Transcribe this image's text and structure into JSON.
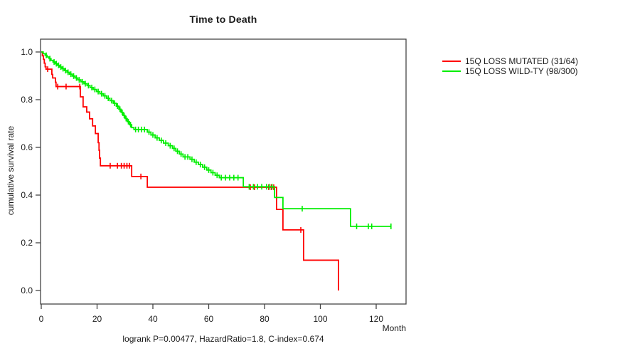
{
  "figure": {
    "title": "Time to Death",
    "ylabel": "cumulative survival rate",
    "xlabel": "Month",
    "footer": "logrank P=0.00477, HazardRatio=1.8, C-index=0.674"
  },
  "chart_data": {
    "type": "line",
    "subtype": "kaplan-meier-step",
    "title": "Time to Death",
    "xlabel": "Month",
    "ylabel": "cumulative survival rate",
    "xlim": [
      0,
      131
    ],
    "ylim": [
      0,
      1.0
    ],
    "x_ticks": [
      0,
      20,
      40,
      60,
      80,
      100,
      120
    ],
    "y_ticks": [
      0.0,
      0.2,
      0.4,
      0.6,
      0.8,
      1.0
    ],
    "grid": false,
    "legend_position": "right-outside",
    "annotation": "logrank P=0.00477, HazardRatio=1.8, C-index=0.674",
    "axis_color": "#444444",
    "series": [
      {
        "name": "15Q LOSS MUTATED (31/64)",
        "color": "#ff0000",
        "end_month": 106.5,
        "steps": [
          [
            0,
            1.0
          ],
          [
            0.4,
            0.984
          ],
          [
            0.8,
            0.969
          ],
          [
            1.1,
            0.953
          ],
          [
            1.4,
            0.938
          ],
          [
            1.7,
            0.928
          ],
          [
            3.8,
            0.906
          ],
          [
            4.1,
            0.891
          ],
          [
            5.1,
            0.873
          ],
          [
            5.3,
            0.855
          ],
          [
            14,
            0.812
          ],
          [
            15,
            0.77
          ],
          [
            16.3,
            0.748
          ],
          [
            17.3,
            0.72
          ],
          [
            18.4,
            0.69
          ],
          [
            19.4,
            0.658
          ],
          [
            20.4,
            0.62
          ],
          [
            20.7,
            0.588
          ],
          [
            20.9,
            0.555
          ],
          [
            21.2,
            0.523
          ],
          [
            32.4,
            0.478
          ],
          [
            38,
            0.433
          ],
          [
            84.3,
            0.34
          ],
          [
            86.6,
            0.254
          ],
          [
            94,
            0.127
          ],
          [
            106.5,
            0
          ]
        ],
        "censor_months": [
          2.3,
          5.9,
          8.9,
          13.8,
          24.7,
          27.3,
          28.7,
          29.7,
          30.7,
          31.6,
          35.7,
          74.9,
          76.4,
          81.5,
          82.4,
          83.3,
          93
        ]
      },
      {
        "name": "15Q LOSS WILD-TY (98/300)",
        "color": "#00ee00",
        "end_month": 125.3,
        "steps": [
          [
            0,
            1.0
          ],
          [
            0.7,
            0.993
          ],
          [
            1.4,
            0.986
          ],
          [
            2.1,
            0.979
          ],
          [
            2.8,
            0.972
          ],
          [
            3.5,
            0.965
          ],
          [
            4.2,
            0.958
          ],
          [
            5,
            0.951
          ],
          [
            5.8,
            0.944
          ],
          [
            6.6,
            0.937
          ],
          [
            7.4,
            0.93
          ],
          [
            8.3,
            0.922
          ],
          [
            9.2,
            0.915
          ],
          [
            10.1,
            0.907
          ],
          [
            11.1,
            0.899
          ],
          [
            12.1,
            0.891
          ],
          [
            13.1,
            0.883
          ],
          [
            14.2,
            0.875
          ],
          [
            15.3,
            0.867
          ],
          [
            16.4,
            0.859
          ],
          [
            17.5,
            0.851
          ],
          [
            18.6,
            0.843
          ],
          [
            19.8,
            0.834
          ],
          [
            21,
            0.825
          ],
          [
            22.2,
            0.816
          ],
          [
            23.4,
            0.806
          ],
          [
            24.6,
            0.796
          ],
          [
            25.8,
            0.785
          ],
          [
            26.9,
            0.773
          ],
          [
            27.8,
            0.76
          ],
          [
            28.6,
            0.747
          ],
          [
            29.3,
            0.734
          ],
          [
            30,
            0.721
          ],
          [
            30.8,
            0.708
          ],
          [
            31.6,
            0.695
          ],
          [
            32.4,
            0.683
          ],
          [
            33.2,
            0.675
          ],
          [
            38,
            0.664
          ],
          [
            39.3,
            0.652
          ],
          [
            40.8,
            0.64
          ],
          [
            42.3,
            0.629
          ],
          [
            43.8,
            0.618
          ],
          [
            45.5,
            0.607
          ],
          [
            47,
            0.596
          ],
          [
            48.2,
            0.584
          ],
          [
            49.5,
            0.572
          ],
          [
            50.8,
            0.56
          ],
          [
            53.3,
            0.55
          ],
          [
            54.8,
            0.538
          ],
          [
            56.3,
            0.528
          ],
          [
            57.8,
            0.517
          ],
          [
            59.3,
            0.505
          ],
          [
            60.8,
            0.494
          ],
          [
            62.3,
            0.483
          ],
          [
            63.8,
            0.473
          ],
          [
            72.4,
            0.435
          ],
          [
            83.6,
            0.39
          ],
          [
            86.6,
            0.343
          ],
          [
            110.8,
            0.269
          ]
        ],
        "censor_months": [
          1.8,
          3.1,
          4.6,
          5.4,
          6.2,
          7,
          7.8,
          8.7,
          9.6,
          10.6,
          11.6,
          12.6,
          13.6,
          14.7,
          15.8,
          16.9,
          18.1,
          19.2,
          20.4,
          21.6,
          22.8,
          24,
          25.2,
          26.3,
          27.3,
          28.2,
          29,
          29.7,
          30.4,
          31.2,
          32,
          33.8,
          34.8,
          35.9,
          37,
          38.6,
          40,
          41.5,
          43,
          44.6,
          46.2,
          47.6,
          48.8,
          50.1,
          51.5,
          52.5,
          54,
          55.5,
          57,
          58.5,
          60,
          61.5,
          63,
          64.5,
          66,
          67.5,
          69,
          70.5,
          74.5,
          76,
          77.5,
          79,
          80.7,
          81.7,
          82.7,
          93.5,
          113,
          117.2,
          118.4,
          125.3
        ]
      }
    ]
  }
}
